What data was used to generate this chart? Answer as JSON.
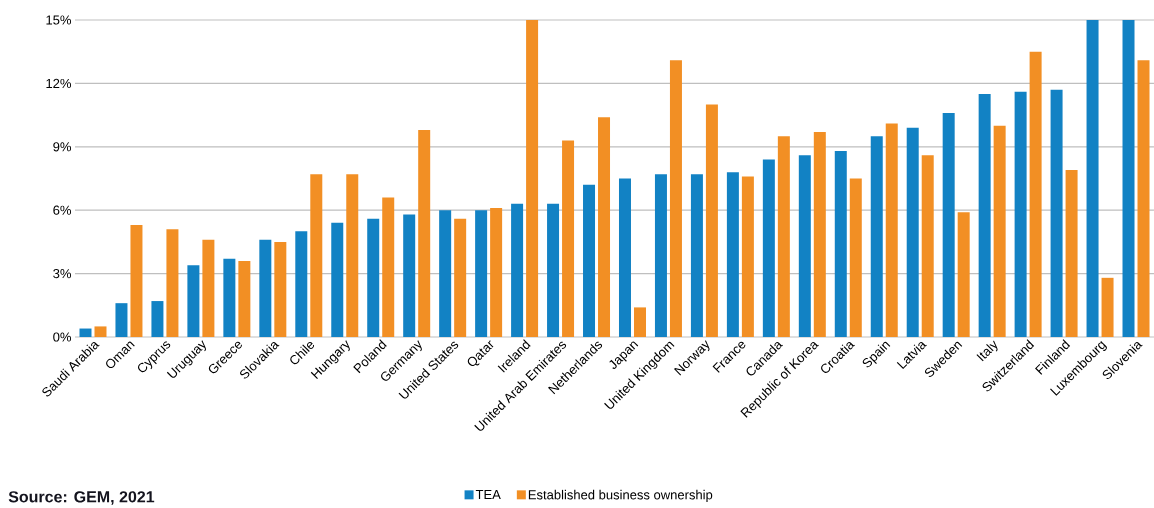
{
  "chart_data": {
    "type": "bar",
    "categories": [
      "Saudi Arabia",
      "Oman",
      "Cyprus",
      "Uruguay",
      "Greece",
      "Slovakia",
      "Chile",
      "Hungary",
      "Poland",
      "Germany",
      "United States",
      "Qatar",
      "Ireland",
      "United Arab Emirates",
      "Netherlands",
      "Japan",
      "United Kingdom",
      "Norway",
      "France",
      "Canada",
      "Republic of Korea",
      "Croatia",
      "Spain",
      "Latvia",
      "Sweden",
      "Italy",
      "Switzerland",
      "Finland",
      "Luxembourg",
      "Slovenia"
    ],
    "series": [
      {
        "name": "TEA",
        "color": "#1282c4",
        "values": [
          0.4,
          1.6,
          1.7,
          3.4,
          3.7,
          4.6,
          5.0,
          5.4,
          5.6,
          5.8,
          6.0,
          6.0,
          6.3,
          6.3,
          7.2,
          7.5,
          7.7,
          7.7,
          7.8,
          8.4,
          8.6,
          8.8,
          9.5,
          9.9,
          10.6,
          11.5,
          11.6,
          11.7,
          15,
          15
        ]
      },
      {
        "name": "Established business ownership",
        "color": "#f28f24",
        "values": [
          0.5,
          5.3,
          5.1,
          4.6,
          3.6,
          4.5,
          7.7,
          7.7,
          6.6,
          9.8,
          5.6,
          6.1,
          15,
          9.3,
          10.4,
          1.4,
          13.1,
          11.0,
          7.6,
          9.5,
          9.7,
          7.5,
          10.1,
          8.6,
          5.9,
          10.0,
          13.5,
          7.9,
          2.8,
          13.1
        ]
      }
    ],
    "ylim": [
      0,
      15
    ],
    "yticks": [
      {
        "value": 0,
        "label": "0%"
      },
      {
        "value": 3,
        "label": "3%"
      },
      {
        "value": 6,
        "label": "6%"
      },
      {
        "value": 9,
        "label": "9%"
      },
      {
        "value": 12,
        "label": "12%"
      },
      {
        "value": 15,
        "label": "15%"
      }
    ],
    "grid": "y",
    "legend": "bottom",
    "annotations": [
      "Source: GEM, 2021"
    ]
  }
}
